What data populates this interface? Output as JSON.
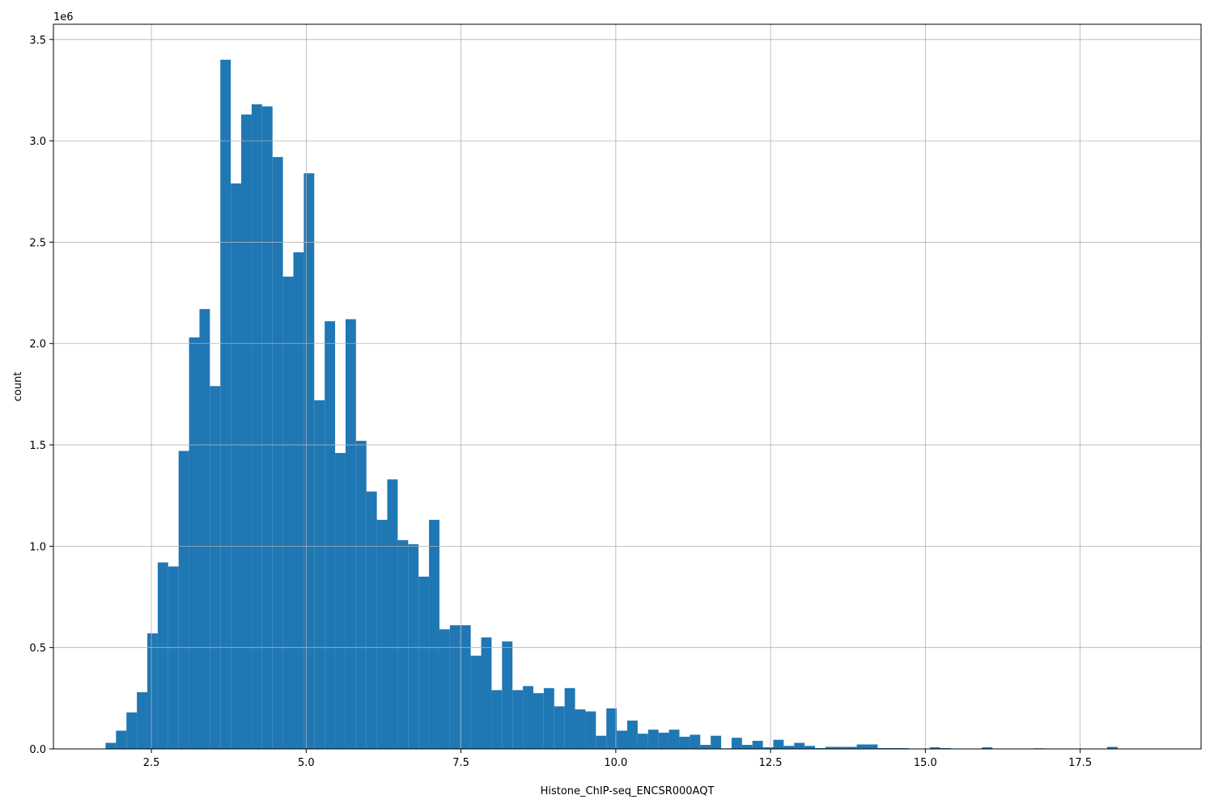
{
  "chart_data": {
    "type": "histogram",
    "xlabel": "Histone_ChIP-seq_ENCSR000AQT",
    "ylabel": "count",
    "y_offset_label": "1e6",
    "color": "#1f77b4",
    "grid": true,
    "bins": [
      1.76,
      1.9285,
      2.097,
      2.2655,
      2.434,
      2.6025,
      2.771,
      2.9395,
      3.108,
      3.2765,
      3.445,
      3.6135,
      3.782,
      3.9505,
      4.119,
      4.2875,
      4.456,
      4.6245,
      4.793,
      4.9615,
      5.13,
      5.2985,
      5.467,
      5.6355,
      5.804,
      5.9725,
      6.141,
      6.3095,
      6.478,
      6.6465,
      6.815,
      6.9835,
      7.152,
      7.3205,
      7.489,
      7.6575,
      7.826,
      7.9945,
      8.163,
      8.3315,
      8.5,
      8.6685,
      8.837,
      9.0055,
      9.174,
      9.3425,
      9.511,
      9.6795,
      9.848,
      10.0165,
      10.185,
      10.3535,
      10.522,
      10.6905,
      10.859,
      11.0275,
      11.196,
      11.3645,
      11.533,
      11.7015,
      11.87,
      12.0385,
      12.207,
      12.3755,
      12.544,
      12.7125,
      12.881,
      13.0495,
      13.218,
      13.3865,
      13.555,
      13.7235,
      13.892,
      14.0605,
      14.229,
      14.3975,
      14.566,
      14.7345,
      14.903,
      15.0715,
      15.24,
      15.4085,
      15.577,
      15.7455,
      15.914,
      16.0825,
      16.251,
      16.4195,
      16.588,
      16.7565,
      16.925,
      17.0935,
      17.262,
      17.4305,
      17.599,
      17.7675,
      17.936,
      18.1045,
      18.273,
      18.4415,
      18.61
    ],
    "values": [
      30000,
      90000,
      180000,
      280000,
      570000,
      920000,
      900000,
      1470000,
      2030000,
      2170000,
      1790000,
      3400000,
      2790000,
      3130000,
      3180000,
      3170000,
      2920000,
      2330000,
      2450000,
      2840000,
      1720000,
      2110000,
      1460000,
      2120000,
      1520000,
      1270000,
      1130000,
      1330000,
      1030000,
      1010000,
      850000,
      1130000,
      590000,
      610000,
      610000,
      460000,
      550000,
      290000,
      530000,
      290000,
      310000,
      275000,
      300000,
      210000,
      300000,
      195000,
      185000,
      65000,
      200000,
      90000,
      140000,
      75000,
      95000,
      80000,
      95000,
      60000,
      70000,
      20000,
      65000,
      3000,
      55000,
      20000,
      40000,
      8000,
      45000,
      15000,
      30000,
      15000,
      4000,
      10000,
      10000,
      10000,
      22000,
      22000,
      4000,
      4000,
      4000,
      1000,
      0,
      8000,
      4000,
      0,
      0,
      0,
      8000,
      0,
      0,
      0,
      0,
      3000,
      0,
      0,
      0,
      0,
      0,
      0,
      10000,
      0,
      0,
      0
    ],
    "xlim": [
      0.9175,
      19.4525
    ],
    "xticks": [
      2.5,
      {
        "value": 5,
        "label": "5.0"
      },
      7.5,
      {
        "value": 10,
        "label": "10.0"
      },
      12.5,
      {
        "value": 15,
        "label": "15.0"
      },
      17.5
    ],
    "ylim": [
      0,
      3575000
    ],
    "yticks": [
      {
        "value": 0,
        "label": "0.0"
      },
      {
        "value": 500000,
        "label": "0.5"
      },
      {
        "value": 1000000,
        "label": "1.0"
      },
      {
        "value": 1500000,
        "label": "1.5"
      },
      {
        "value": 2000000,
        "label": "2.0"
      },
      {
        "value": 2500000,
        "label": "2.5"
      },
      {
        "value": 3000000,
        "label": "3.0"
      },
      {
        "value": 3500000,
        "label": "3.5"
      }
    ]
  }
}
